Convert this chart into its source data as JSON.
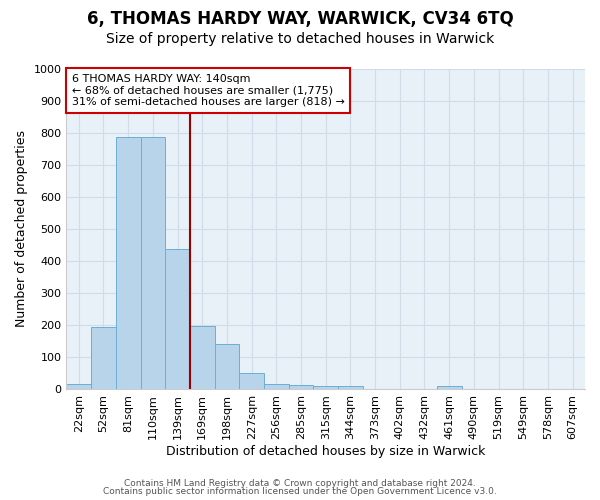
{
  "title1": "6, THOMAS HARDY WAY, WARWICK, CV34 6TQ",
  "title2": "Size of property relative to detached houses in Warwick",
  "xlabel": "Distribution of detached houses by size in Warwick",
  "ylabel": "Number of detached properties",
  "categories": [
    "22sqm",
    "52sqm",
    "81sqm",
    "110sqm",
    "139sqm",
    "169sqm",
    "198sqm",
    "227sqm",
    "256sqm",
    "285sqm",
    "315sqm",
    "344sqm",
    "373sqm",
    "402sqm",
    "432sqm",
    "461sqm",
    "490sqm",
    "519sqm",
    "549sqm",
    "578sqm",
    "607sqm"
  ],
  "values": [
    15,
    193,
    787,
    787,
    437,
    197,
    140,
    50,
    15,
    13,
    10,
    10,
    0,
    0,
    0,
    10,
    0,
    0,
    0,
    0,
    0
  ],
  "bar_color": "#b8d4ea",
  "bar_edge_color": "#6aaed6",
  "vline_color": "#990000",
  "vline_x": 4.5,
  "annotation_line1": "6 THOMAS HARDY WAY: 140sqm",
  "annotation_line2": "← 68% of detached houses are smaller (1,775)",
  "annotation_line3": "31% of semi-detached houses are larger (818) →",
  "annotation_box_color": "#ffffff",
  "annotation_border_color": "#cc0000",
  "ylim": [
    0,
    1000
  ],
  "yticks": [
    0,
    100,
    200,
    300,
    400,
    500,
    600,
    700,
    800,
    900,
    1000
  ],
  "background_color": "#e8f0f8",
  "grid_color": "#d0dce8",
  "fig_background": "#ffffff",
  "footer1": "Contains HM Land Registry data © Crown copyright and database right 2024.",
  "footer2": "Contains public sector information licensed under the Open Government Licence v3.0.",
  "title1_fontsize": 12,
  "title2_fontsize": 10,
  "annotation_fontsize": 8,
  "tick_fontsize": 8,
  "ylabel_fontsize": 9,
  "xlabel_fontsize": 9,
  "footer_fontsize": 6.5
}
